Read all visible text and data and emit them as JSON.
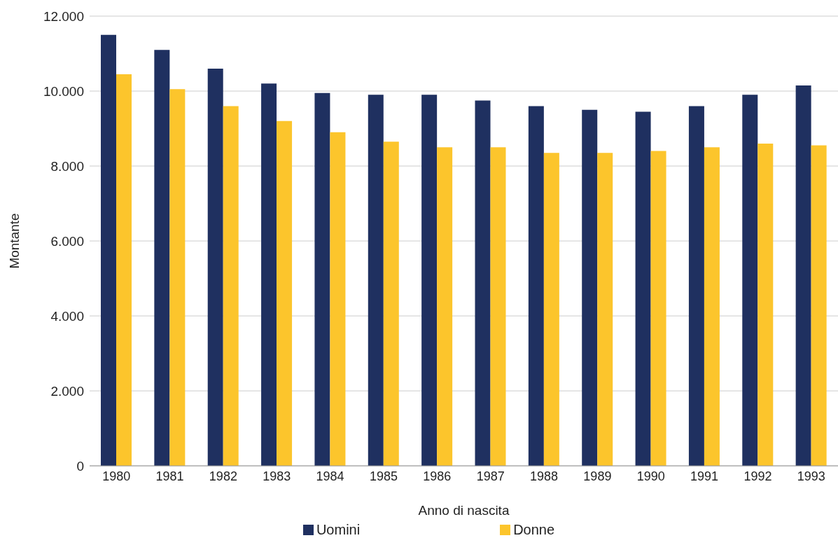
{
  "chart_data": {
    "type": "bar",
    "xlabel": "Anno di nascita",
    "ylabel": "Montante",
    "categories": [
      "1980",
      "1981",
      "1982",
      "1983",
      "1984",
      "1985",
      "1986",
      "1987",
      "1988",
      "1989",
      "1990",
      "1991",
      "1992",
      "1993"
    ],
    "series": [
      {
        "name": "Uomini",
        "color": "#1f3060",
        "values": [
          11500,
          11100,
          10600,
          10200,
          9950,
          9900,
          9900,
          9750,
          9600,
          9500,
          9450,
          9600,
          9900,
          10150
        ]
      },
      {
        "name": "Donne",
        "color": "#fcc52c",
        "values": [
          10450,
          10050,
          9600,
          9200,
          8900,
          8650,
          8500,
          8500,
          8350,
          8350,
          8400,
          8500,
          8600,
          8550
        ]
      }
    ],
    "ylim": [
      0,
      12000
    ],
    "yticks": [
      {
        "value": 0,
        "label": "0"
      },
      {
        "value": 2000,
        "label": "2.000"
      },
      {
        "value": 4000,
        "label": "4.000"
      },
      {
        "value": 6000,
        "label": "6.000"
      },
      {
        "value": 8000,
        "label": "8.000"
      },
      {
        "value": 10000,
        "label": "10.000"
      },
      {
        "value": 12000,
        "label": "12.000"
      }
    ],
    "grid": "y",
    "legend": "bottom"
  }
}
